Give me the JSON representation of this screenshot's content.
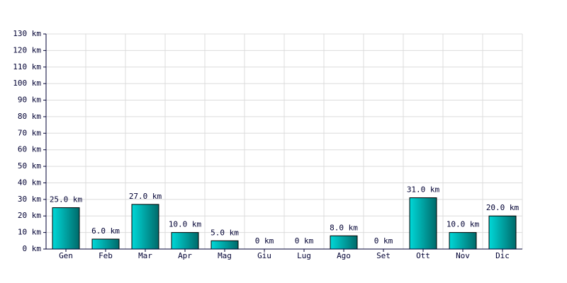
{
  "chart_data": {
    "type": "bar",
    "categories": [
      "Gen",
      "Feb",
      "Mar",
      "Apr",
      "Mag",
      "Giu",
      "Lug",
      "Ago",
      "Set",
      "Ott",
      "Nov",
      "Dic"
    ],
    "values": [
      25,
      6,
      27,
      10,
      5,
      0,
      0,
      8,
      0,
      31,
      10,
      20
    ],
    "value_labels": [
      "25.0 km",
      "6.0 km",
      "27.0 km",
      "10.0 km",
      "5.0 km",
      "0 km",
      "0 km",
      "8.0 km",
      "0 km",
      "31.0 km",
      "10.0 km",
      "20.0 km"
    ],
    "color": "#00d8d8",
    "ylim": [
      0,
      130
    ],
    "yticks": [
      {
        "value": 0,
        "label": "0 km"
      },
      {
        "value": 10,
        "label": "10 km"
      },
      {
        "value": 20,
        "label": "20 km"
      },
      {
        "value": 30,
        "label": "30 km"
      },
      {
        "value": 40,
        "label": "40 km"
      },
      {
        "value": 50,
        "label": "50 km"
      },
      {
        "value": 60,
        "label": "60 km"
      },
      {
        "value": 70,
        "label": "70 km"
      },
      {
        "value": 80,
        "label": "80 km"
      },
      {
        "value": 90,
        "label": "90 km"
      },
      {
        "value": 100,
        "label": "100 km"
      },
      {
        "value": 110,
        "label": "110 km"
      },
      {
        "value": 120,
        "label": "120 km"
      },
      {
        "value": 130,
        "label": "130 km"
      }
    ],
    "grid": true
  }
}
